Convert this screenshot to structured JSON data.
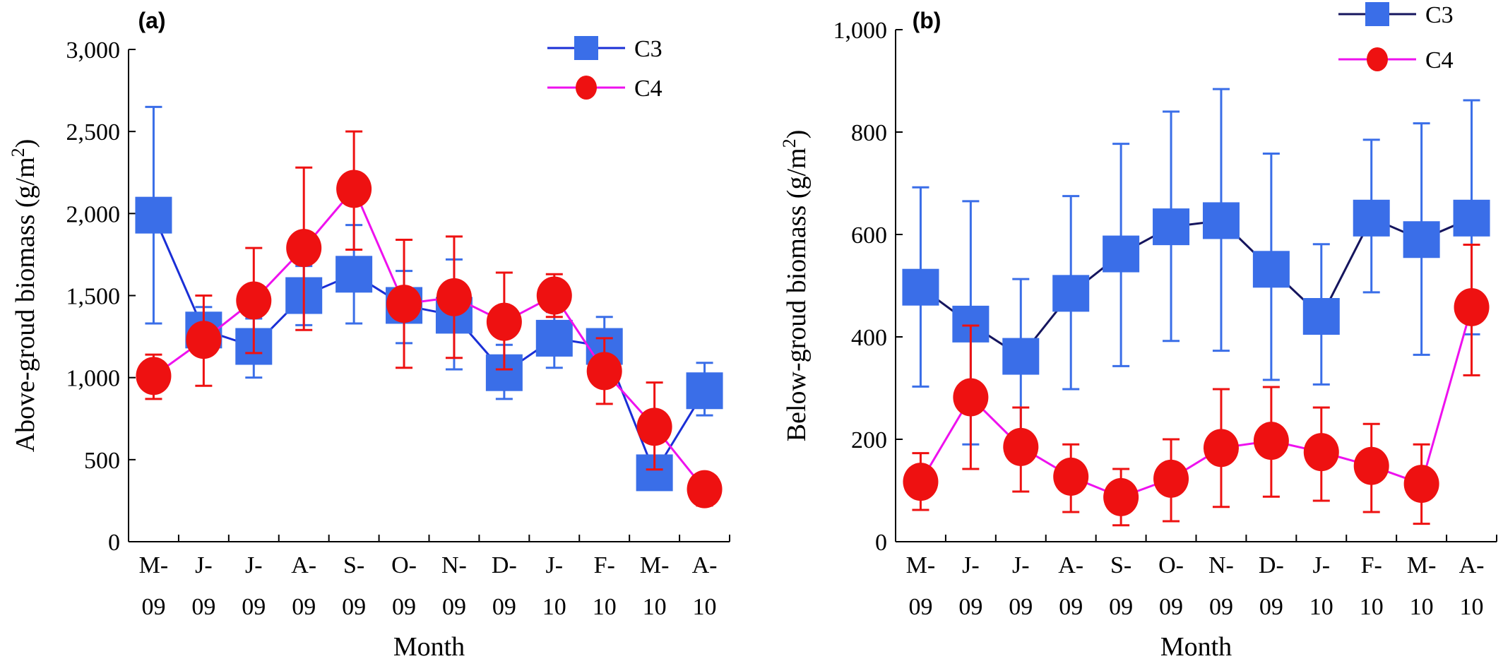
{
  "chart_data": [
    {
      "type": "line",
      "panel_label": "(a)",
      "xlabel": "Month",
      "ylabel": "Above-groud biomass (g/m",
      "ylabel_sup": "2",
      "ylabel_close": ")",
      "ylim": [
        0,
        3000
      ],
      "yticks": [
        0,
        500,
        1000,
        1500,
        2000,
        2500,
        3000
      ],
      "ytick_labels": [
        "0",
        "500",
        "1,000",
        "1,500",
        "2,000",
        "2,500",
        "3,000"
      ],
      "categories": [
        [
          "M-",
          "09"
        ],
        [
          "J-",
          "09"
        ],
        [
          "J-",
          "09"
        ],
        [
          "A-",
          "09"
        ],
        [
          "S-",
          "09"
        ],
        [
          "O-",
          "09"
        ],
        [
          "N-",
          "09"
        ],
        [
          "D-",
          "09"
        ],
        [
          "J-",
          "10"
        ],
        [
          "F-",
          "10"
        ],
        [
          "M-",
          "10"
        ],
        [
          "A-",
          "10"
        ]
      ],
      "grid": false,
      "legend": "top-right",
      "series": [
        {
          "name": "C3",
          "color": "#3a6ee8",
          "line_color": "#1a2fd6",
          "marker": "square",
          "values": [
            1990,
            1290,
            1190,
            1500,
            1630,
            1440,
            1380,
            1030,
            1240,
            1190,
            420,
            920
          ],
          "err_low": [
            1330,
            1160,
            1000,
            1320,
            1330,
            1210,
            1050,
            870,
            1060,
            1040,
            330,
            770
          ],
          "err_high": [
            2650,
            1430,
            1360,
            1680,
            1930,
            1650,
            1720,
            1200,
            1400,
            1370,
            520,
            1090
          ]
        },
        {
          "name": "C4",
          "color": "#ee1111",
          "line_color": "#ee11ee",
          "marker": "circle",
          "values": [
            1010,
            1230,
            1470,
            1790,
            2150,
            1450,
            1490,
            1340,
            1500,
            1040,
            700,
            320
          ],
          "err_low": [
            870,
            950,
            1150,
            1290,
            1780,
            1060,
            1120,
            1050,
            1370,
            840,
            440,
            220
          ],
          "err_high": [
            1140,
            1500,
            1790,
            2280,
            2500,
            1840,
            1860,
            1640,
            1630,
            1240,
            970,
            400
          ]
        }
      ]
    },
    {
      "type": "line",
      "panel_label": "(b)",
      "xlabel": "Month",
      "ylabel": "Below-groud biomass (g/m",
      "ylabel_sup": "2",
      "ylabel_close": ")",
      "ylim": [
        0,
        1000
      ],
      "yticks": [
        0,
        200,
        400,
        600,
        800,
        1000
      ],
      "ytick_labels": [
        "0",
        "200",
        "400",
        "600",
        "800",
        "1,000"
      ],
      "categories": [
        [
          "M-",
          "09"
        ],
        [
          "J-",
          "09"
        ],
        [
          "J-",
          "09"
        ],
        [
          "A-",
          "09"
        ],
        [
          "S-",
          "09"
        ],
        [
          "O-",
          "09"
        ],
        [
          "N-",
          "09"
        ],
        [
          "D-",
          "09"
        ],
        [
          "J-",
          "10"
        ],
        [
          "F-",
          "10"
        ],
        [
          "M-",
          "10"
        ],
        [
          "A-",
          "10"
        ]
      ],
      "grid": false,
      "legend": "top-right",
      "series": [
        {
          "name": "C3",
          "color": "#3a6ee8",
          "line_color": "#15155e",
          "marker": "square",
          "values": [
            497,
            425,
            362,
            485,
            562,
            615,
            627,
            532,
            440,
            632,
            590,
            632
          ],
          "err_low": [
            303,
            190,
            210,
            298,
            343,
            392,
            373,
            316,
            307,
            487,
            365,
            405
          ],
          "err_high": [
            692,
            665,
            513,
            675,
            777,
            840,
            884,
            758,
            581,
            785,
            817,
            862
          ]
        },
        {
          "name": "C4",
          "color": "#ee1111",
          "line_color": "#ee11ee",
          "marker": "circle",
          "values": [
            117,
            282,
            185,
            127,
            87,
            123,
            183,
            197,
            175,
            148,
            113,
            458
          ],
          "err_low": [
            62,
            142,
            98,
            58,
            32,
            40,
            68,
            88,
            80,
            58,
            35,
            325
          ],
          "err_high": [
            173,
            422,
            262,
            190,
            142,
            200,
            298,
            302,
            262,
            230,
            190,
            580
          ]
        }
      ]
    }
  ]
}
